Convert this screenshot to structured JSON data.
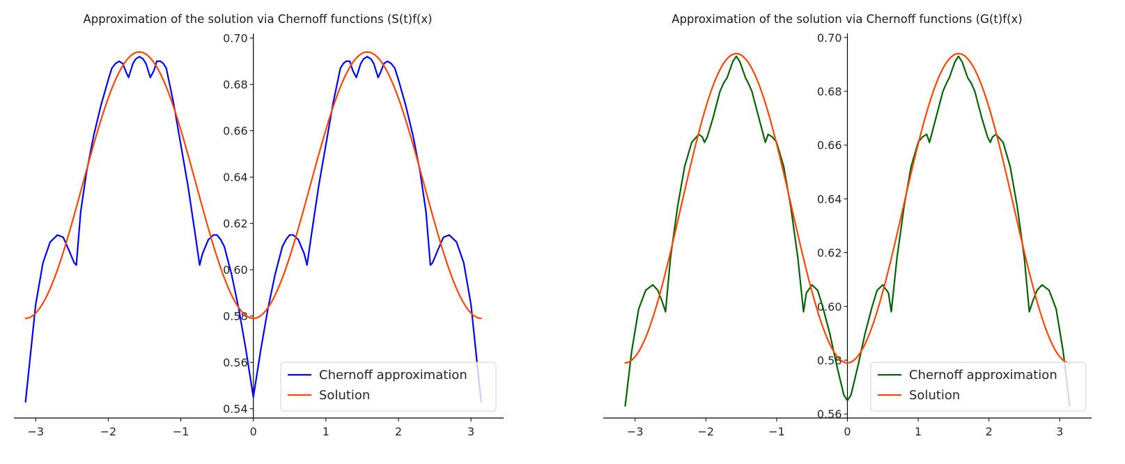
{
  "chart_data": [
    {
      "type": "line",
      "title": "Approximation of the solution via Chernoff functions (S(t)f(x)",
      "xlim": [
        -3.3,
        3.45
      ],
      "ylim": [
        0.536,
        0.702
      ],
      "x_ticks": [
        -3,
        -2,
        -1,
        0,
        1,
        2,
        3
      ],
      "x_tick_labels": [
        "−3",
        "−2",
        "−1",
        "0",
        "1",
        "2",
        "3"
      ],
      "y_ticks": [
        0.54,
        0.56,
        0.58,
        0.6,
        0.62,
        0.64,
        0.66,
        0.68,
        0.7
      ],
      "y_tick_labels": [
        "0.54",
        "0.56",
        "0.58",
        "0.60",
        "0.62",
        "0.64",
        "0.66",
        "0.68",
        "0.70"
      ],
      "legend_position": "lower-right",
      "series": [
        {
          "name": "Chernoff approximation",
          "color": "#0000ff",
          "x": [
            -3.14,
            -3.0,
            -2.9,
            -2.8,
            -2.7,
            -2.62,
            -2.55,
            -2.47,
            -2.44,
            -2.38,
            -2.3,
            -2.2,
            -2.1,
            -2.0,
            -1.95,
            -1.9,
            -1.85,
            -1.8,
            -1.75,
            -1.72,
            -1.66,
            -1.62,
            -1.57,
            -1.52,
            -1.48,
            -1.42,
            -1.37,
            -1.33,
            -1.28,
            -1.24,
            -1.2,
            -1.1,
            -1.0,
            -0.9,
            -0.8,
            -0.74,
            -0.7,
            -0.62,
            -0.55,
            -0.5,
            -0.45,
            -0.4,
            -0.3,
            -0.2,
            -0.1,
            0.0,
            0.1,
            0.2,
            0.3,
            0.4,
            0.45,
            0.5,
            0.55,
            0.62,
            0.7,
            0.74,
            0.8,
            0.9,
            1.0,
            1.1,
            1.2,
            1.24,
            1.28,
            1.33,
            1.37,
            1.42,
            1.48,
            1.52,
            1.57,
            1.62,
            1.66,
            1.72,
            1.75,
            1.8,
            1.85,
            1.9,
            1.95,
            2.0,
            2.1,
            2.2,
            2.3,
            2.38,
            2.44,
            2.47,
            2.55,
            2.62,
            2.7,
            2.8,
            2.9,
            3.0,
            3.14
          ],
          "y": [
            0.543,
            0.585,
            0.603,
            0.612,
            0.615,
            0.614,
            0.609,
            0.603,
            0.602,
            0.625,
            0.642,
            0.658,
            0.671,
            0.682,
            0.687,
            0.689,
            0.69,
            0.689,
            0.685,
            0.683,
            0.689,
            0.691,
            0.692,
            0.691,
            0.689,
            0.683,
            0.686,
            0.69,
            0.69,
            0.689,
            0.687,
            0.672,
            0.654,
            0.636,
            0.615,
            0.602,
            0.607,
            0.613,
            0.615,
            0.615,
            0.613,
            0.61,
            0.598,
            0.583,
            0.565,
            0.545,
            0.565,
            0.583,
            0.598,
            0.61,
            0.613,
            0.615,
            0.615,
            0.613,
            0.607,
            0.602,
            0.615,
            0.636,
            0.654,
            0.672,
            0.687,
            0.689,
            0.69,
            0.69,
            0.686,
            0.683,
            0.689,
            0.691,
            0.692,
            0.691,
            0.689,
            0.683,
            0.685,
            0.689,
            0.69,
            0.689,
            0.687,
            0.682,
            0.671,
            0.658,
            0.642,
            0.625,
            0.602,
            0.603,
            0.609,
            0.614,
            0.615,
            0.612,
            0.603,
            0.585,
            0.543
          ]
        },
        {
          "name": "Solution",
          "color": "#ff4500",
          "function": "0.6365 - 0.0575*cos(2*x)",
          "x_range": [
            -3.14,
            3.14
          ]
        }
      ]
    },
    {
      "type": "line",
      "title": "Approximation of the solution via Chernoff functions (G(t)f(x)",
      "xlim": [
        -3.45,
        3.45
      ],
      "ylim": [
        0.5585,
        0.7015
      ],
      "x_ticks": [
        -3,
        -2,
        -1,
        0,
        1,
        2,
        3
      ],
      "x_tick_labels": [
        "−3",
        "−2",
        "−1",
        "0",
        "1",
        "2",
        "3"
      ],
      "y_ticks": [
        0.56,
        0.58,
        0.6,
        0.62,
        0.64,
        0.66,
        0.68,
        0.7
      ],
      "y_tick_labels": [
        "0.56",
        "0.58",
        "0.60",
        "0.62",
        "0.64",
        "0.66",
        "0.68",
        "0.70"
      ],
      "legend_position": "lower-right",
      "series": [
        {
          "name": "Chernoff approximation",
          "color": "#006400",
          "x": [
            -3.14,
            -3.05,
            -2.95,
            -2.85,
            -2.75,
            -2.68,
            -2.62,
            -2.57,
            -2.5,
            -2.4,
            -2.3,
            -2.2,
            -2.1,
            -2.05,
            -2.02,
            -1.98,
            -1.9,
            -1.8,
            -1.75,
            -1.7,
            -1.62,
            -1.57,
            -1.52,
            -1.44,
            -1.4,
            -1.35,
            -1.25,
            -1.16,
            -1.12,
            -1.06,
            -1.0,
            -0.9,
            -0.8,
            -0.7,
            -0.62,
            -0.58,
            -0.5,
            -0.42,
            -0.35,
            -0.25,
            -0.15,
            -0.05,
            0.0,
            0.05,
            0.15,
            0.25,
            0.35,
            0.42,
            0.5,
            0.58,
            0.62,
            0.7,
            0.8,
            0.9,
            1.0,
            1.06,
            1.12,
            1.16,
            1.25,
            1.35,
            1.4,
            1.44,
            1.52,
            1.57,
            1.62,
            1.7,
            1.75,
            1.8,
            1.9,
            1.98,
            2.02,
            2.05,
            2.1,
            2.2,
            2.3,
            2.4,
            2.5,
            2.57,
            2.62,
            2.68,
            2.75,
            2.85,
            2.95,
            3.05,
            3.14
          ],
          "y": [
            0.563,
            0.583,
            0.599,
            0.606,
            0.608,
            0.606,
            0.602,
            0.598,
            0.618,
            0.637,
            0.652,
            0.661,
            0.664,
            0.663,
            0.661,
            0.663,
            0.67,
            0.68,
            0.683,
            0.685,
            0.691,
            0.693,
            0.691,
            0.685,
            0.683,
            0.68,
            0.67,
            0.661,
            0.664,
            0.663,
            0.661,
            0.652,
            0.637,
            0.618,
            0.598,
            0.605,
            0.608,
            0.606,
            0.6,
            0.59,
            0.578,
            0.567,
            0.565,
            0.567,
            0.578,
            0.59,
            0.6,
            0.606,
            0.608,
            0.605,
            0.598,
            0.618,
            0.637,
            0.652,
            0.661,
            0.663,
            0.664,
            0.661,
            0.67,
            0.68,
            0.683,
            0.685,
            0.691,
            0.693,
            0.691,
            0.685,
            0.683,
            0.68,
            0.67,
            0.663,
            0.661,
            0.663,
            0.664,
            0.661,
            0.652,
            0.637,
            0.618,
            0.598,
            0.602,
            0.606,
            0.608,
            0.606,
            0.599,
            0.583,
            0.563
          ]
        },
        {
          "name": "Solution",
          "color": "#ff4500",
          "function": "0.6365 - 0.0575*cos(2*x)",
          "x_range": [
            -3.14,
            3.14
          ]
        }
      ]
    }
  ]
}
